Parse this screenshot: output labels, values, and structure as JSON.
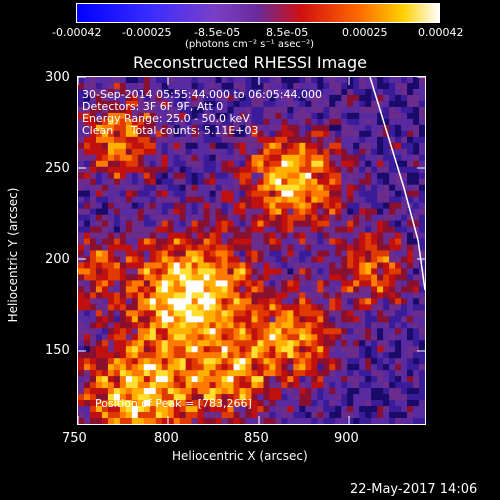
{
  "colorbar": {
    "tick_labels": [
      "-0.00042",
      "-0.00025",
      "-8.5e-05",
      "8.5e-05",
      "0.00025",
      "0.00042"
    ],
    "unit_label": "(photons cm⁻² s⁻¹ asec⁻²)"
  },
  "title": "Reconstructed RHESSI Image",
  "annotations": {
    "time": "30-Sep-2014 05:55:44.000 to 06:05:44.000",
    "detectors": "Detectors: 3F 6F 9F, Att 0",
    "energy": "Energy Range: 25.0 - 50.0 keV",
    "clean": "Clean     Total counts: 5.11E+03",
    "peak": "Position of Peak = [783,266]"
  },
  "axes": {
    "xlabel": "Heliocentric X (arcsec)",
    "ylabel": "Heliocentric Y (arcsec)",
    "x_ticks": [
      "750",
      "800",
      "850",
      "900"
    ],
    "y_ticks": [
      "150",
      "200",
      "250",
      "300"
    ]
  },
  "footer": {
    "date": "22-May-2017 14:06"
  },
  "colors": {
    "background": "#000000",
    "foreground": "#ffffff"
  }
}
